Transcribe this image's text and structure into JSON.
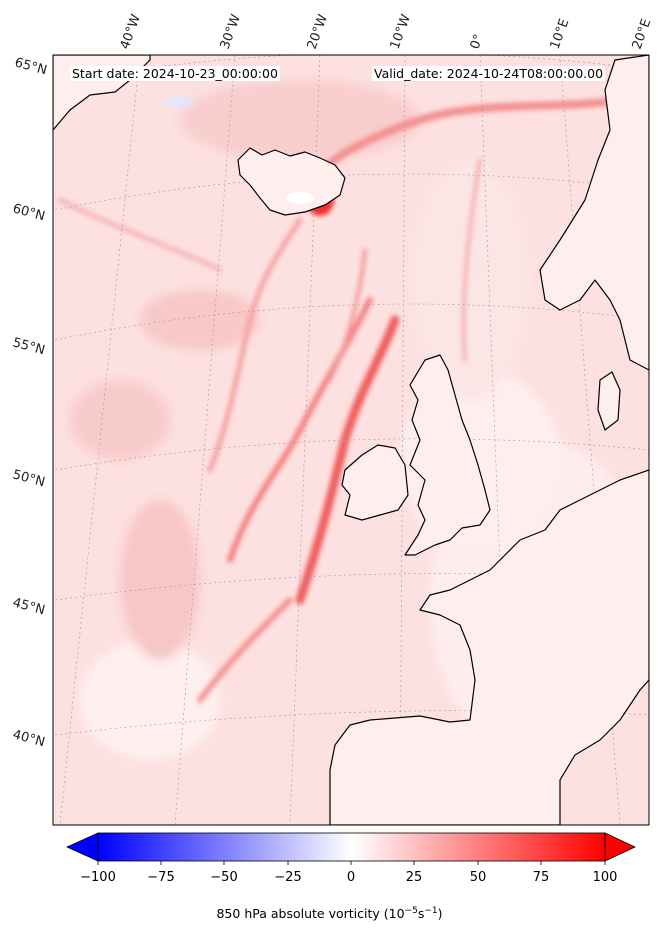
{
  "header": {
    "start_date": "Start date: 2024-10-23_00:00:00",
    "valid_date": "Valid_date: 2024-10-24T08:00:00.00"
  },
  "map": {
    "lon_labels": [
      "40°W",
      "30°W",
      "20°W",
      "10°W",
      "0°",
      "10°E",
      "20°E"
    ],
    "lat_labels": [
      "65°N",
      "60°N",
      "55°N",
      "50°N",
      "45°N",
      "40°N"
    ],
    "colors": {
      "positive_max": "#ff0000",
      "negative_max": "#0000ff",
      "coastline": "#000000"
    }
  },
  "colorbar": {
    "ticks": [
      "−100",
      "−75",
      "−50",
      "−25",
      "0",
      "25",
      "50",
      "75",
      "100"
    ],
    "label_prefix": "850 hPa absolute vorticity (10",
    "label_exp1": "−5",
    "label_mid": "s",
    "label_exp2": "−1",
    "label_suffix": ")"
  }
}
